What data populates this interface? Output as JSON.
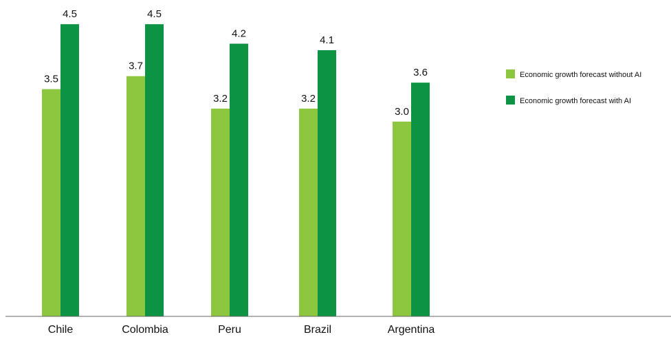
{
  "chart_data": {
    "type": "bar",
    "categories": [
      "Chile",
      "Colombia",
      "Peru",
      "Brazil",
      "Argentina"
    ],
    "series": [
      {
        "name": "Economic growth forecast without AI",
        "values": [
          3.5,
          3.7,
          3.2,
          3.2,
          3.0
        ],
        "labels": [
          "3.5",
          "3.7",
          "3.2",
          "3.2",
          "3.0"
        ],
        "color": "#8dc63f"
      },
      {
        "name": "Economic growth forecast with AI",
        "values": [
          4.5,
          4.5,
          4.2,
          4.1,
          3.6
        ],
        "labels": [
          "4.5",
          "4.5",
          "4.2",
          "4.1",
          "3.6"
        ],
        "color": "#0c9444"
      }
    ],
    "ylim": [
      0,
      5.0
    ],
    "grid": false,
    "legend_position": "top-right",
    "axis_color": "#666666"
  }
}
